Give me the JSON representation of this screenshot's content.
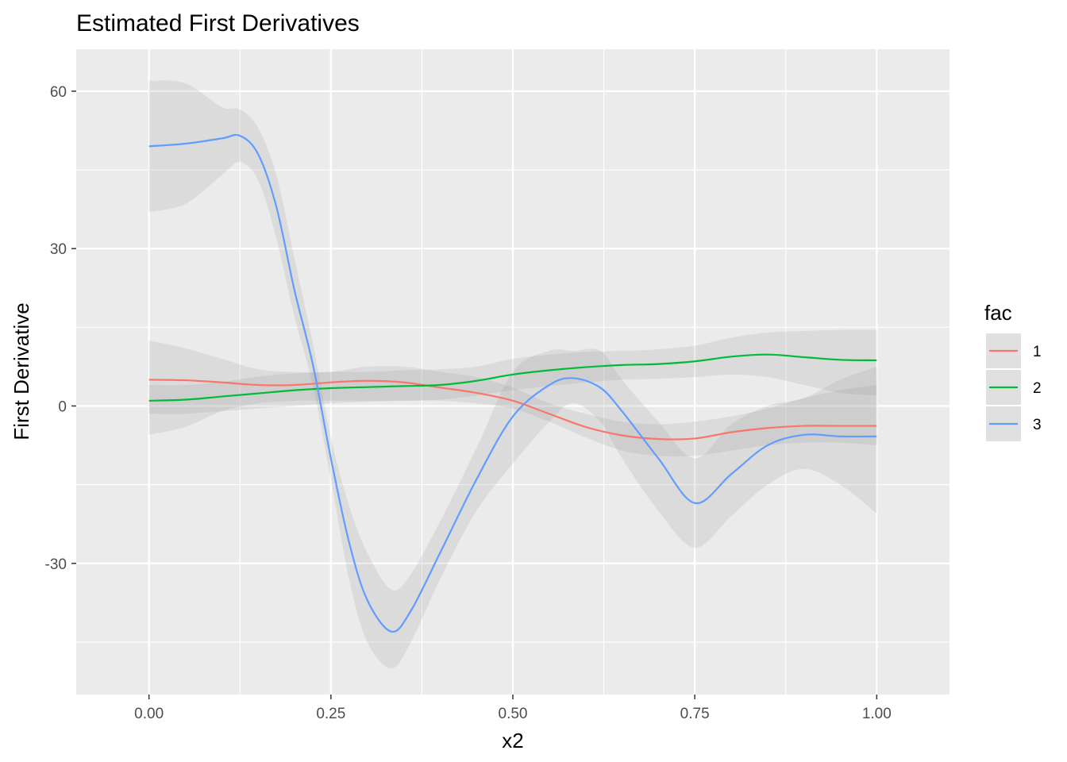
{
  "chart_data": {
    "type": "line",
    "title": "Estimated First Derivatives",
    "xlabel": "x2",
    "ylabel": "First Derivative",
    "xlim": [
      -0.1,
      1.1
    ],
    "ylim": [
      -55,
      68
    ],
    "x_ticks": [
      0.0,
      0.25,
      0.5,
      0.75,
      1.0
    ],
    "x_tick_labels": [
      "0.00",
      "0.25",
      "0.50",
      "0.75",
      "1.00"
    ],
    "y_ticks": [
      -30,
      0,
      30,
      60
    ],
    "y_tick_labels": [
      "-30",
      "0",
      "30",
      "60"
    ],
    "grid": true,
    "legend": {
      "title": "fac",
      "position": "right"
    },
    "series": [
      {
        "name": "1",
        "color": "#F8766D",
        "x": [
          0.0,
          0.05,
          0.1,
          0.15,
          0.2,
          0.25,
          0.3,
          0.35,
          0.4,
          0.45,
          0.5,
          0.55,
          0.6,
          0.65,
          0.7,
          0.75,
          0.8,
          0.85,
          0.9,
          0.95,
          1.0
        ],
        "y": [
          5.0,
          4.9,
          4.5,
          4.0,
          4.0,
          4.5,
          4.8,
          4.5,
          3.5,
          2.5,
          1.0,
          -1.5,
          -4.0,
          -5.6,
          -6.3,
          -6.2,
          -5.0,
          -4.2,
          -3.8,
          -3.8,
          -3.8
        ],
        "lower": [
          -5.5,
          -4.0,
          -1.0,
          0.5,
          1.0,
          1.0,
          1.0,
          1.0,
          1.0,
          0.5,
          -0.5,
          -3.0,
          -6.0,
          -8.5,
          -9.5,
          -9.5,
          -8.5,
          -7.5,
          -7.0,
          -7.0,
          -7.5
        ],
        "upper": [
          12.5,
          11.0,
          9.0,
          7.0,
          6.5,
          6.5,
          7.5,
          7.5,
          6.5,
          5.5,
          3.5,
          0.5,
          -1.5,
          -3.0,
          -3.5,
          -3.0,
          -2.0,
          -0.5,
          1.5,
          3.0,
          4.0
        ]
      },
      {
        "name": "2",
        "color": "#00BA38",
        "x": [
          0.0,
          0.05,
          0.1,
          0.15,
          0.2,
          0.25,
          0.3,
          0.35,
          0.4,
          0.45,
          0.5,
          0.55,
          0.6,
          0.65,
          0.7,
          0.75,
          0.8,
          0.85,
          0.9,
          0.95,
          1.0
        ],
        "y": [
          1.0,
          1.2,
          1.8,
          2.4,
          3.0,
          3.4,
          3.6,
          3.8,
          4.0,
          4.8,
          6.0,
          6.8,
          7.4,
          7.8,
          8.0,
          8.5,
          9.4,
          9.8,
          9.3,
          8.8,
          8.7
        ],
        "lower": [
          -1.5,
          -1.5,
          -1.0,
          -0.5,
          0.0,
          0.5,
          0.8,
          1.0,
          1.2,
          2.0,
          3.0,
          3.8,
          4.5,
          5.0,
          5.2,
          5.5,
          6.0,
          5.5,
          4.0,
          2.5,
          2.0
        ],
        "upper": [
          4.0,
          4.0,
          4.6,
          5.6,
          6.2,
          6.5,
          6.5,
          6.8,
          7.0,
          7.5,
          9.0,
          9.8,
          10.3,
          10.5,
          10.8,
          11.5,
          13.0,
          14.0,
          14.3,
          14.5,
          14.5
        ]
      },
      {
        "name": "3",
        "color": "#619CFF",
        "x": [
          0.0,
          0.05,
          0.1,
          0.125,
          0.15,
          0.175,
          0.2,
          0.225,
          0.25,
          0.275,
          0.3,
          0.333,
          0.36,
          0.4,
          0.45,
          0.5,
          0.55,
          0.583,
          0.62,
          0.65,
          0.7,
          0.75,
          0.8,
          0.85,
          0.9,
          0.95,
          1.0
        ],
        "y": [
          49.5,
          50.0,
          51.0,
          51.5,
          48.0,
          38.0,
          22.0,
          8.0,
          -10.0,
          -26.0,
          -37.0,
          -43.0,
          -39.0,
          -28.0,
          -14.0,
          -2.0,
          4.0,
          5.3,
          3.5,
          -1.0,
          -10.0,
          -18.5,
          -13.0,
          -7.5,
          -5.5,
          -5.8,
          -5.8
        ],
        "lower": [
          37.0,
          38.5,
          44.0,
          46.5,
          43.0,
          32.0,
          17.0,
          4.0,
          -14.0,
          -33.0,
          -45.0,
          -50.0,
          -45.0,
          -33.0,
          -20.0,
          -11.0,
          -3.0,
          0.5,
          -3.0,
          -10.0,
          -20.0,
          -27.0,
          -21.0,
          -15.0,
          -12.0,
          -15.0,
          -20.5
        ],
        "upper": [
          62.0,
          61.5,
          57.0,
          56.5,
          53.0,
          44.0,
          28.0,
          12.0,
          -6.0,
          -19.0,
          -28.0,
          -35.0,
          -32.0,
          -22.0,
          -8.0,
          6.5,
          10.5,
          10.5,
          10.5,
          5.0,
          -3.0,
          -10.0,
          -3.5,
          0.0,
          1.5,
          5.0,
          7.5
        ]
      }
    ]
  }
}
